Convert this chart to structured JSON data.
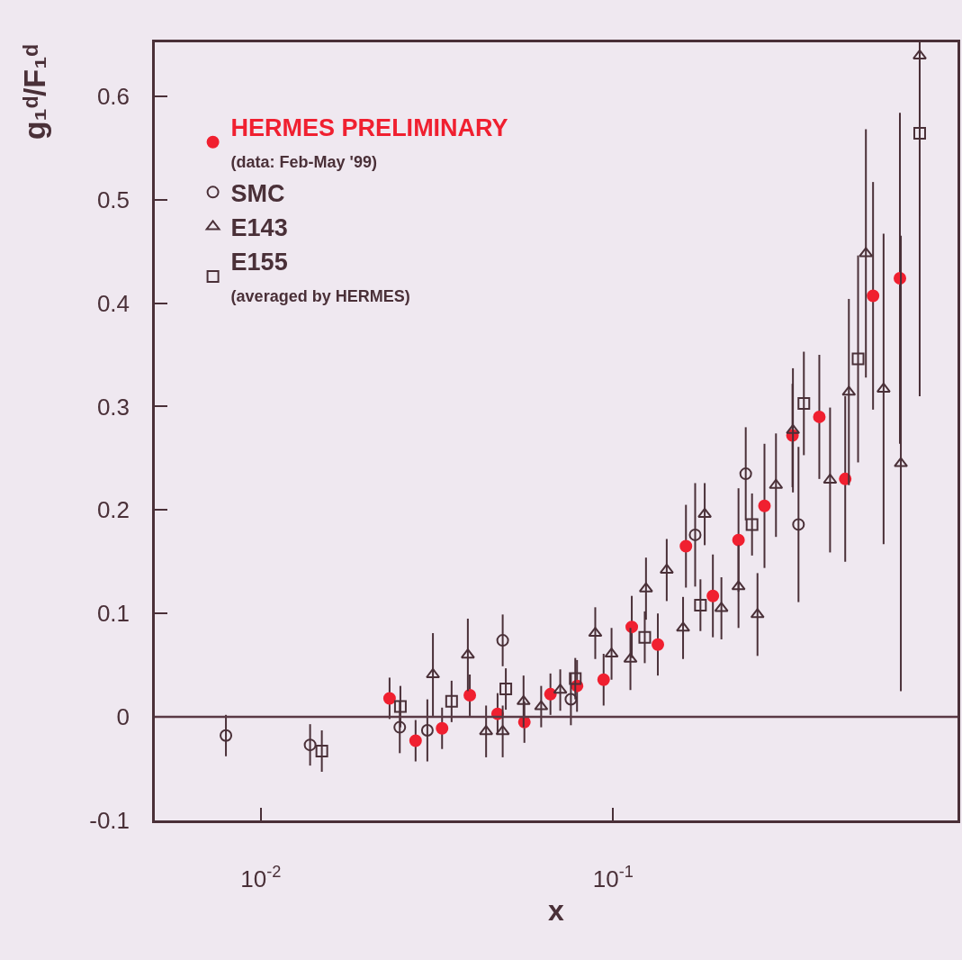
{
  "chart_data": {
    "type": "scatter",
    "xlabel": "x",
    "ylabel": "g₁ᵈ/F₁ᵈ",
    "log": "x",
    "xlim": [
      0.005,
      0.95
    ],
    "xticks": [
      {
        "value": 0.01,
        "label": "10$^{-2}$"
      },
      {
        "value": 0.1,
        "label": "10$^{-1}$"
      }
    ],
    "ylim": [
      -0.1,
      0.652
    ],
    "yticks": [
      -0.1,
      0,
      0.1,
      0.2,
      0.3,
      0.4,
      0.5,
      0.6
    ],
    "grid": false,
    "legend": "top left",
    "ref_lines": [
      {
        "axis": "y",
        "value": 0,
        "color": "#5a3a45"
      }
    ],
    "series": [
      {
        "name": "HERMES PRELIMINARY\n(data: Feb-May '99)",
        "color": "#f02030",
        "marker": "circle",
        "x": [
          0.0232,
          0.0275,
          0.0327,
          0.0392,
          0.047,
          0.056,
          0.0664,
          0.079,
          0.094,
          0.113,
          0.134,
          0.161,
          0.192,
          0.227,
          0.269,
          0.323,
          0.385,
          0.456,
          0.547,
          0.652
        ],
        "values": [
          0.018,
          -0.023,
          -0.011,
          0.021,
          0.003,
          -0.005,
          0.022,
          0.03,
          0.036,
          0.087,
          0.07,
          0.165,
          0.117,
          0.171,
          0.204,
          0.272,
          0.29,
          0.23,
          0.407,
          0.424
        ],
        "errors": [
          0.02,
          0.02,
          0.02,
          0.02,
          0.02,
          0.02,
          0.02,
          0.025,
          0.025,
          0.03,
          0.03,
          0.04,
          0.04,
          0.05,
          0.06,
          0.05,
          0.06,
          0.08,
          0.11,
          0.16
        ]
      },
      {
        "name": "SMC",
        "color": "#4a3038",
        "marker": "circle-open",
        "x": [
          0.00796,
          0.0138,
          0.0248,
          0.0297,
          0.0486,
          0.0759,
          0.171,
          0.238,
          0.336
        ],
        "values": [
          -0.018,
          -0.027,
          -0.01,
          -0.013,
          0.074,
          0.017,
          0.176,
          0.235,
          0.186
        ],
        "errors": [
          0.02,
          0.02,
          0.025,
          0.03,
          0.025,
          0.025,
          0.05,
          0.045,
          0.075
        ]
      },
      {
        "name": "E143",
        "color": "#4a3038",
        "marker": "triangle-open",
        "x": [
          0.0308,
          0.0387,
          0.0436,
          0.0486,
          0.0557,
          0.0625,
          0.0708,
          0.089,
          0.099,
          0.112,
          0.124,
          0.142,
          0.158,
          0.182,
          0.203,
          0.227,
          0.257,
          0.29,
          0.324,
          0.413,
          0.467,
          0.522,
          0.586,
          0.656,
          0.742
        ],
        "values": [
          0.041,
          0.06,
          -0.014,
          -0.014,
          0.015,
          0.01,
          0.026,
          0.081,
          0.061,
          0.056,
          0.124,
          0.142,
          0.086,
          0.196,
          0.105,
          0.126,
          0.099,
          0.224,
          0.277,
          0.229,
          0.314,
          0.448,
          0.317,
          0.245,
          0.639
        ],
        "errors": [
          0.04,
          0.035,
          0.025,
          0.025,
          0.025,
          0.02,
          0.02,
          0.025,
          0.025,
          0.03,
          0.03,
          0.03,
          0.03,
          0.03,
          0.03,
          0.04,
          0.04,
          0.05,
          0.06,
          0.07,
          0.09,
          0.12,
          0.15,
          0.22,
          [
            0.31,
            0.652
          ]
        ]
      },
      {
        "name": "E155\n(averaged by HERMES)",
        "color": "#4a3038",
        "marker": "square-open",
        "x": [
          0.0149,
          0.0249,
          0.0348,
          0.0496,
          0.0781,
          0.123,
          0.177,
          0.248,
          0.348,
          0.496,
          0.742
        ],
        "values": [
          -0.033,
          0.01,
          0.015,
          0.027,
          0.037,
          0.077,
          0.108,
          0.186,
          0.303,
          0.346,
          0.564
        ],
        "errors": [
          0.02,
          0.02,
          0.02,
          0.02,
          0.02,
          0.025,
          0.025,
          0.03,
          0.05,
          0.1,
          0.08
        ]
      }
    ]
  }
}
